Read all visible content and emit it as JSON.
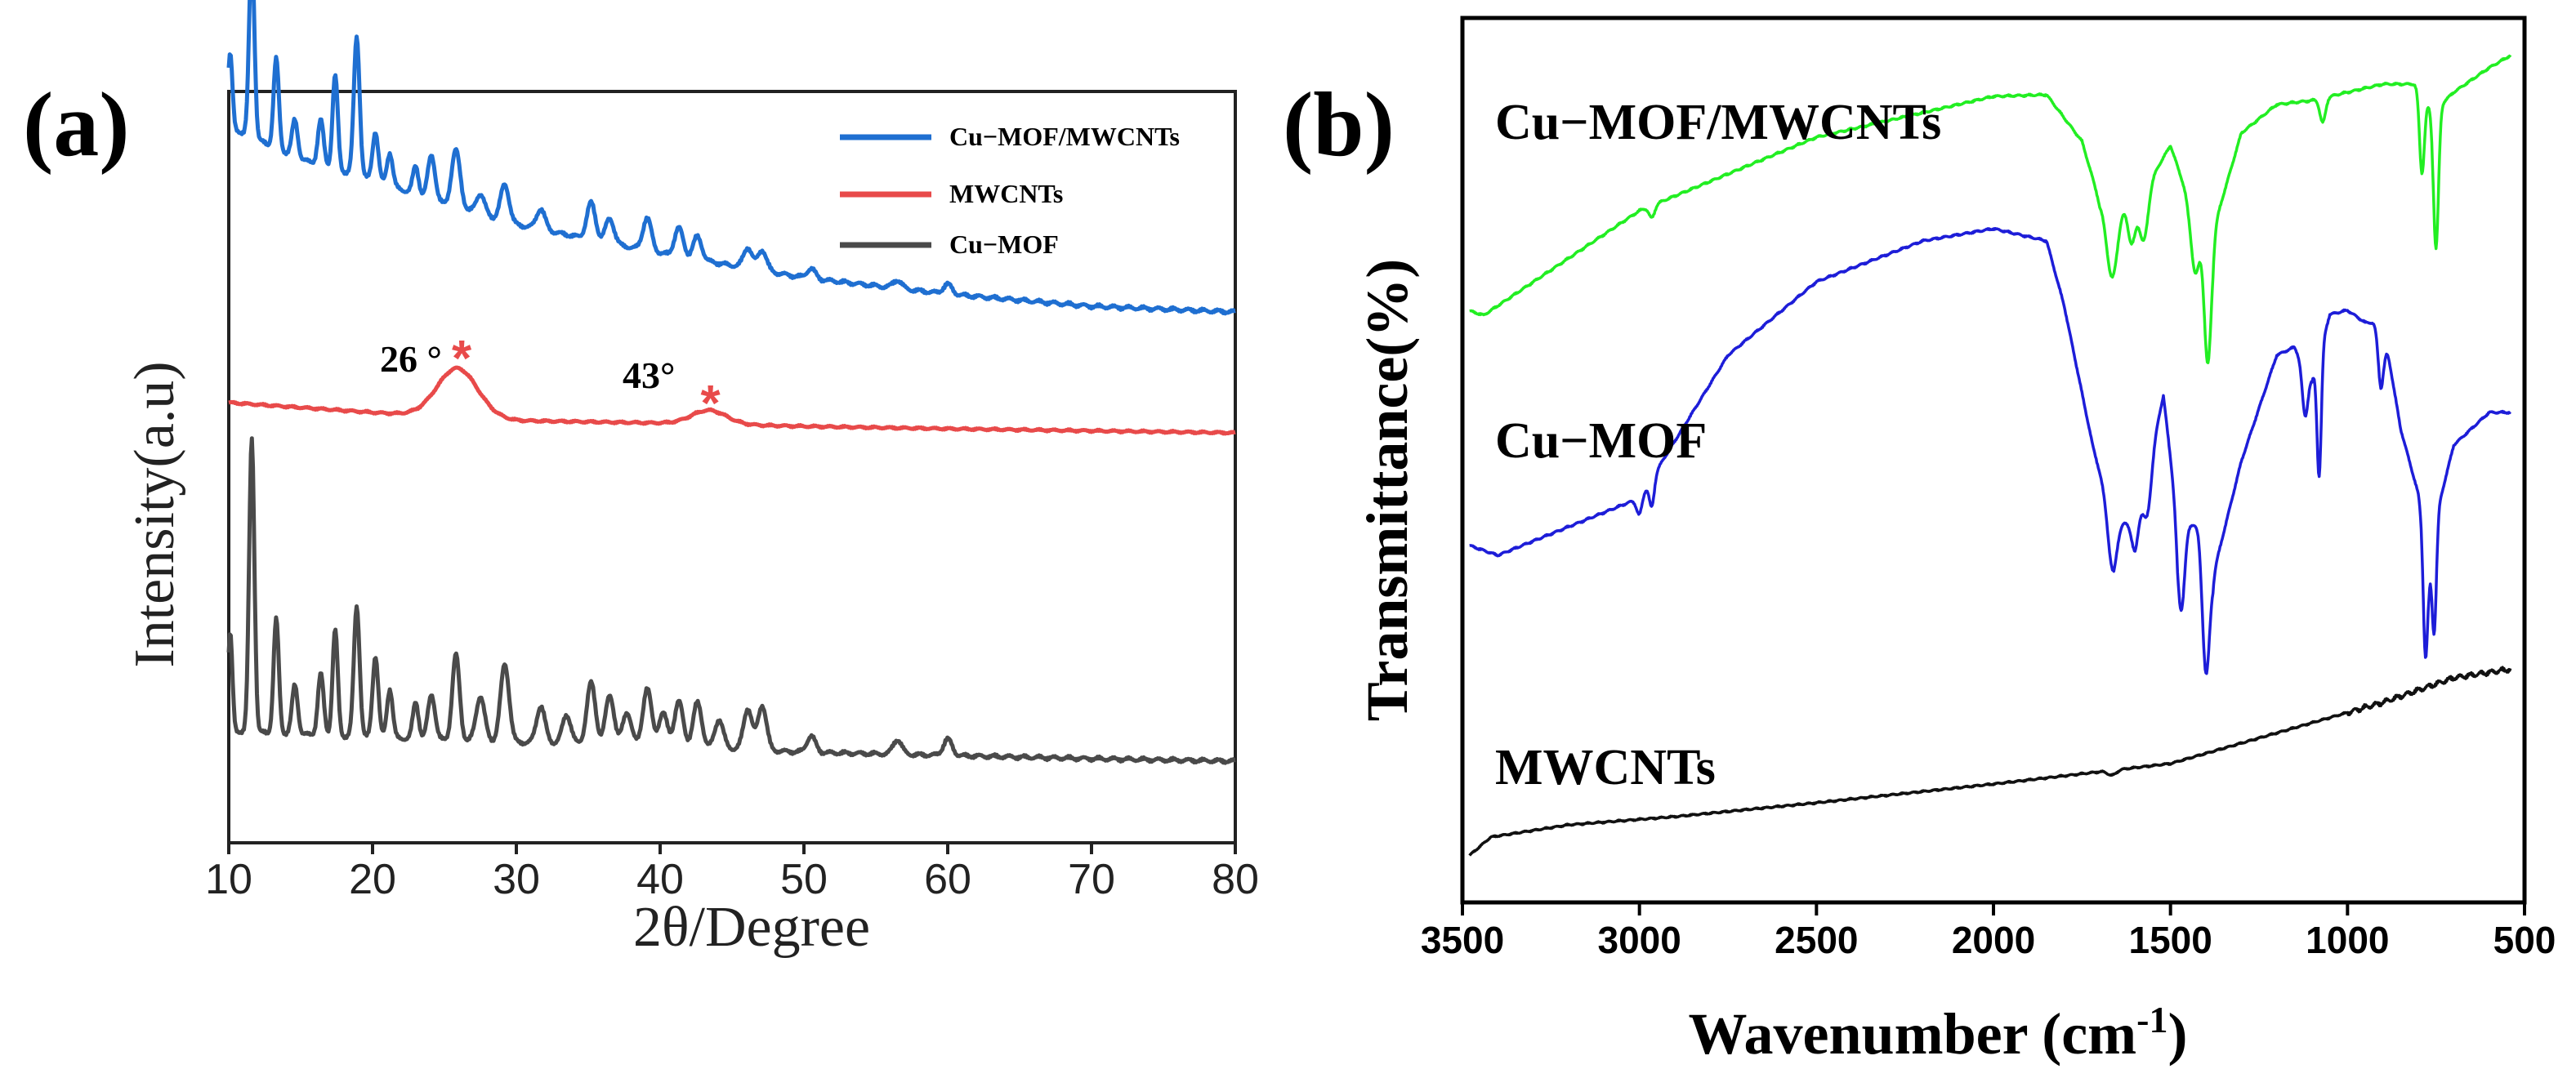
{
  "chart_data": [
    {
      "type": "line",
      "panel_label": "(a)",
      "xlabel": "2θ/Degree",
      "ylabel": "Intensity(a.u)",
      "xlim": [
        10,
        80
      ],
      "xticks": [
        "10",
        "20",
        "30",
        "40",
        "50",
        "60",
        "70",
        "80"
      ],
      "legend_position": "top-right",
      "annotations": [
        {
          "text": "26 °",
          "x": 26
        },
        {
          "text": "43°",
          "x": 43
        }
      ],
      "marker_symbol": "*",
      "series": [
        {
          "name": "Cu−MOF/MWCNTs",
          "color": "#1f6fd1",
          "baseline": [
            [
              10,
              245
            ],
            [
              15,
              205
            ],
            [
              20,
              180
            ],
            [
              25,
              150
            ],
            [
              30,
              125
            ],
            [
              40,
              90
            ],
            [
              50,
              60
            ],
            [
              60,
              40
            ],
            [
              70,
              25
            ],
            [
              80,
              18
            ]
          ],
          "peaks": [
            [
              10.1,
              90,
              0.15
            ],
            [
              11.6,
              230,
              0.18
            ],
            [
              13.3,
              110,
              0.18
            ],
            [
              14.6,
              45,
              0.2
            ],
            [
              16.4,
              55,
              0.2
            ],
            [
              17.4,
              115,
              0.18
            ],
            [
              18.9,
              170,
              0.2
            ],
            [
              20.2,
              60,
              0.2
            ],
            [
              21.2,
              40,
              0.2
            ],
            [
              23.0,
              35,
              0.2
            ],
            [
              24.1,
              55,
              0.25
            ],
            [
              25.8,
              70,
              0.3
            ],
            [
              27.5,
              25,
              0.3
            ],
            [
              29.2,
              45,
              0.3
            ],
            [
              31.7,
              25,
              0.3
            ],
            [
              35.2,
              45,
              0.3
            ],
            [
              36.5,
              30,
              0.3
            ],
            [
              39.1,
              40,
              0.3
            ],
            [
              41.3,
              35,
              0.3
            ],
            [
              42.6,
              28,
              0.3
            ],
            [
              46.1,
              25,
              0.3
            ],
            [
              47.1,
              25,
              0.3
            ],
            [
              50.5,
              12,
              0.3
            ],
            [
              56.5,
              10,
              0.3
            ],
            [
              60.0,
              12,
              0.3
            ]
          ]
        },
        {
          "name": "MWCNTs",
          "color": "#e84a4a",
          "baseline": [
            [
              10,
              42
            ],
            [
              20,
              30
            ],
            [
              30,
              20
            ],
            [
              40,
              17
            ],
            [
              50,
              13
            ],
            [
              60,
              10
            ],
            [
              80,
              5
            ]
          ],
          "peaks": [
            [
              25.9,
              60,
              1.4
            ],
            [
              43.4,
              17,
              1.2
            ]
          ]
        },
        {
          "name": "Cu−MOF",
          "color": "#4a4a4a",
          "baseline": [
            [
              10,
              40
            ],
            [
              20,
              32
            ],
            [
              30,
              26
            ],
            [
              40,
              22
            ],
            [
              50,
              14
            ],
            [
              60,
              10
            ],
            [
              70,
              6
            ],
            [
              80,
              3
            ]
          ],
          "peaks": [
            [
              10.1,
              120,
              0.15
            ],
            [
              11.6,
              360,
              0.18
            ],
            [
              13.3,
              140,
              0.18
            ],
            [
              14.6,
              60,
              0.2
            ],
            [
              16.4,
              75,
              0.2
            ],
            [
              17.4,
              130,
              0.18
            ],
            [
              18.9,
              160,
              0.2
            ],
            [
              20.2,
              100,
              0.2
            ],
            [
              21.2,
              60,
              0.2
            ],
            [
              23.0,
              45,
              0.2
            ],
            [
              24.1,
              55,
              0.25
            ],
            [
              25.8,
              105,
              0.25
            ],
            [
              27.5,
              55,
              0.3
            ],
            [
              29.2,
              95,
              0.3
            ],
            [
              31.7,
              45,
              0.3
            ],
            [
              33.5,
              35,
              0.3
            ],
            [
              35.2,
              75,
              0.3
            ],
            [
              36.5,
              60,
              0.3
            ],
            [
              37.7,
              40,
              0.3
            ],
            [
              39.1,
              70,
              0.3
            ],
            [
              40.2,
              40,
              0.3
            ],
            [
              41.3,
              55,
              0.3
            ],
            [
              42.6,
              55,
              0.3
            ],
            [
              44.1,
              35,
              0.3
            ],
            [
              46.1,
              50,
              0.3
            ],
            [
              47.1,
              55,
              0.3
            ],
            [
              50.5,
              20,
              0.3
            ],
            [
              56.5,
              18,
              0.3
            ],
            [
              60.0,
              20,
              0.3
            ]
          ]
        }
      ]
    },
    {
      "type": "line",
      "panel_label": "(b)",
      "xlabel": "Wavenumber (cm",
      "xlabel_sup": "-1",
      "xlabel_suffix": ")",
      "ylabel": "Transmittance(%)",
      "xlim": [
        3500,
        500
      ],
      "xticks": [
        "3500",
        "3000",
        "2500",
        "2000",
        "1500",
        "1000",
        "500"
      ],
      "series": [
        {
          "name": "Cu−MOF/MWCNTs",
          "color": "#22ee22",
          "baseline": [
            [
              3500,
              0
            ],
            [
              3440,
              -8
            ],
            [
              3000,
              120
            ],
            [
              2500,
              210
            ],
            [
              2000,
              260
            ],
            [
              1850,
              262
            ],
            [
              1750,
              205
            ],
            [
              1700,
              130
            ],
            [
              1600,
              125
            ],
            [
              1500,
              200
            ],
            [
              1450,
              135
            ],
            [
              1380,
              95
            ],
            [
              1300,
              215
            ],
            [
              1200,
              250
            ],
            [
              1100,
              255
            ],
            [
              1000,
              265
            ],
            [
              900,
              275
            ],
            [
              800,
              275
            ],
            [
              760,
              240
            ],
            [
              700,
              265
            ],
            [
              600,
              295
            ],
            [
              540,
              310
            ]
          ],
          "dips": [
            [
              2965,
              15,
              8
            ],
            [
              1665,
              90,
              15
            ],
            [
              1610,
              45,
              10
            ],
            [
              1575,
              60,
              12
            ],
            [
              1430,
              80,
              12
            ],
            [
              1395,
              170,
              10
            ],
            [
              1070,
              30,
              8
            ],
            [
              790,
              100,
              7
            ],
            [
              750,
              170,
              7
            ]
          ]
        },
        {
          "name": "Cu−MOF",
          "color": "#1d1dd8",
          "baseline": [
            [
              3500,
              0
            ],
            [
              3400,
              -15
            ],
            [
              3000,
              55
            ],
            [
              2750,
              230
            ],
            [
              2500,
              320
            ],
            [
              2200,
              370
            ],
            [
              2000,
              385
            ],
            [
              1850,
              370
            ],
            [
              1800,
              290
            ],
            [
              1720,
              120
            ],
            [
              1660,
              20
            ],
            [
              1600,
              30
            ],
            [
              1520,
              180
            ],
            [
              1480,
              30
            ],
            [
              1420,
              20
            ],
            [
              1380,
              -40
            ],
            [
              1300,
              100
            ],
            [
              1200,
              230
            ],
            [
              1150,
              240
            ],
            [
              1100,
              200
            ],
            [
              1050,
              280
            ],
            [
              1000,
              285
            ],
            [
              950,
              270
            ],
            [
              900,
              270
            ],
            [
              850,
              140
            ],
            [
              800,
              60
            ],
            [
              770,
              -30
            ],
            [
              740,
              50
            ],
            [
              700,
              120
            ],
            [
              650,
              140
            ],
            [
              600,
              160
            ],
            [
              540,
              160
            ]
          ],
          "dips": [
            [
              3000,
              20,
              8
            ],
            [
              2965,
              35,
              7
            ],
            [
              1665,
              60,
              12
            ],
            [
              1600,
              40,
              10
            ],
            [
              1565,
              60,
              12
            ],
            [
              1470,
              110,
              10
            ],
            [
              1400,
              150,
              10
            ],
            [
              1120,
              60,
              8
            ],
            [
              1080,
              150,
              6
            ],
            [
              905,
              80,
              8
            ],
            [
              780,
              140,
              6
            ],
            [
              755,
              120,
              6
            ]
          ]
        },
        {
          "name": "MWCNTs",
          "color": "#111111",
          "baseline": [
            [
              3500,
              0
            ],
            [
              3420,
              30
            ],
            [
              3200,
              45
            ],
            [
              2900,
              55
            ],
            [
              2500,
              72
            ],
            [
              2000,
              95
            ],
            [
              1700,
              110
            ],
            [
              1500,
              120
            ],
            [
              1300,
              145
            ],
            [
              1100,
              170
            ],
            [
              900,
              195
            ],
            [
              700,
              225
            ],
            [
              550,
              235
            ]
          ],
          "dips": [
            [
              1665,
              6,
              12
            ]
          ]
        }
      ]
    }
  ]
}
